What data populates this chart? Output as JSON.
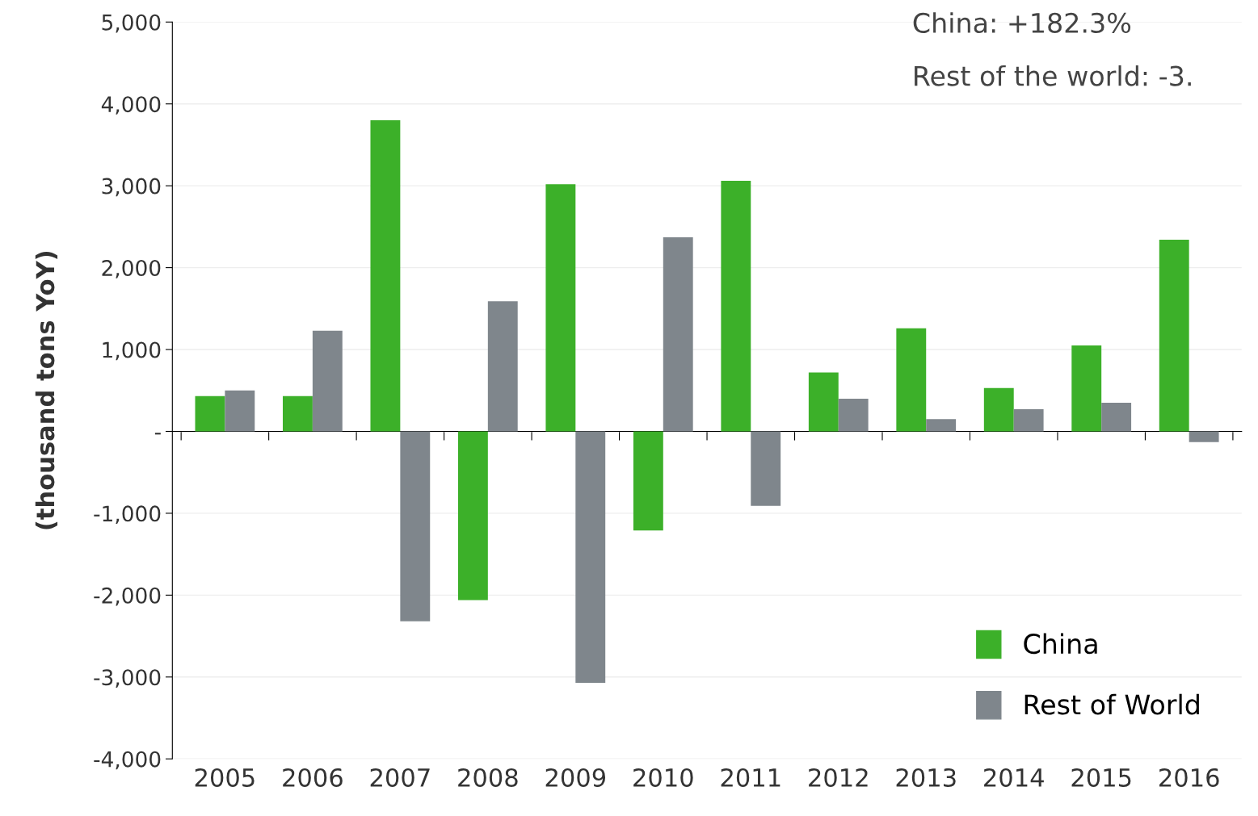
{
  "chart_data": {
    "type": "bar",
    "ylabel": "(thousand tons YoY)",
    "categories": [
      "2005",
      "2006",
      "2007",
      "2008",
      "2009",
      "2010",
      "2011",
      "2012",
      "2013",
      "2014",
      "2015",
      "2016"
    ],
    "series": [
      {
        "name": "China",
        "color": "#3cb029",
        "values": [
          430,
          430,
          3800,
          -2060,
          3020,
          -1210,
          3060,
          720,
          1260,
          530,
          1050,
          2340
        ]
      },
      {
        "name": "Rest of World",
        "color": "#7f868c",
        "values": [
          500,
          1230,
          -2320,
          1590,
          -3070,
          2370,
          -910,
          400,
          150,
          270,
          350,
          -130
        ]
      }
    ],
    "ylim": [
      -4000,
      5000
    ],
    "yticks": [
      {
        "value": -4000,
        "label": "-4,000"
      },
      {
        "value": -3000,
        "label": "-3,000"
      },
      {
        "value": -2000,
        "label": "-2,000"
      },
      {
        "value": -1000,
        "label": "-1,000"
      },
      {
        "value": 0,
        "label": "-"
      },
      {
        "value": 1000,
        "label": "1,000"
      },
      {
        "value": 2000,
        "label": "2,000"
      },
      {
        "value": 3000,
        "label": "3,000"
      },
      {
        "value": 4000,
        "label": "4,000"
      },
      {
        "value": 5000,
        "label": "5,000"
      }
    ],
    "annotations": [
      "China: +182.3%",
      "Rest of the world: -3."
    ],
    "grid": "y",
    "legend": "bottom right"
  }
}
